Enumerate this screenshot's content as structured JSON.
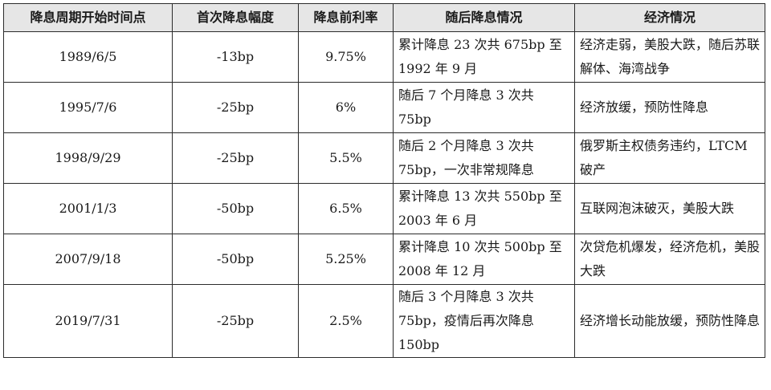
{
  "table": {
    "headers": [
      "降息周期开始时间点",
      "首次降息幅度",
      "降息前利率",
      "随后降息情况",
      "经济情况"
    ],
    "rows": [
      {
        "start_date": "1989/6/5",
        "first_cut": "-13bp",
        "prior_rate": "9.75%",
        "follow_up": "累计降息 23 次共 675bp 至 1992 年 9 月",
        "economy": "经济走弱，美股大跌，随后苏联解体、海湾战争"
      },
      {
        "start_date": "1995/7/6",
        "first_cut": "-25bp",
        "prior_rate": "6%",
        "follow_up": "随后 7 个月降息 3 次共 75bp",
        "economy": "经济放缓，预防性降息"
      },
      {
        "start_date": "1998/9/29",
        "first_cut": "-25bp",
        "prior_rate": "5.5%",
        "follow_up": "随后 2 个月降息 3 次共 75bp，一次非常规降息",
        "economy": "俄罗斯主权债务违约，LTCM 破产"
      },
      {
        "start_date": "2001/1/3",
        "first_cut": "-50bp",
        "prior_rate": "6.5%",
        "follow_up": "累计降息 13 次共 550bp 至 2003 年 6 月",
        "economy": "互联网泡沫破灭，美股大跌"
      },
      {
        "start_date": "2007/9/18",
        "first_cut": "-50bp",
        "prior_rate": "5.25%",
        "follow_up": "累计降息 10 次共 500bp 至 2008 年 12 月",
        "economy": "次贷危机爆发，经济危机，美股大跌"
      },
      {
        "start_date": "2019/7/31",
        "first_cut": "-25bp",
        "prior_rate": "2.5%",
        "follow_up": "随后 3 个月降息 3 次共 75bp，疫情后再次降息 150bp",
        "economy": "经济增长动能放缓，预防性降息"
      }
    ]
  }
}
